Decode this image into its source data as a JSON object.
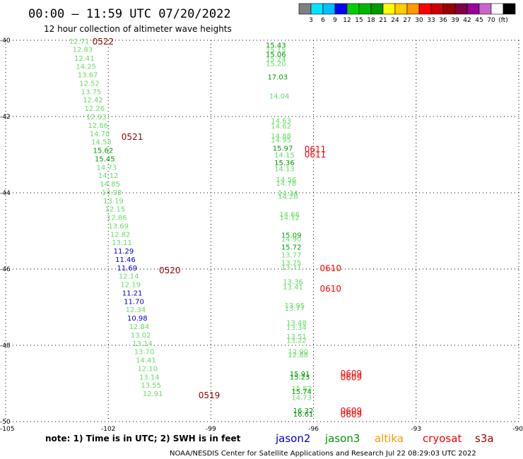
{
  "title": "00:00 – 11:59 UTC 07/20/2022",
  "subtitle": "12 hour collection of altimeter wave heights",
  "note": "note:  1) Time is in UTC;  2) SWH is in feet",
  "credit": "NOAA/NESDIS Center for Satellite Applications and Research     Jul 22 08:29:03 UTC 2022",
  "colorbar": {
    "colors": [
      "#7f7f7f",
      "#00e5ff",
      "#00bfff",
      "#0000ff",
      "#00d000",
      "#00b800",
      "#009900",
      "#ffff00",
      "#ffcc00",
      "#ff9900",
      "#ff0000",
      "#cc0000",
      "#990000",
      "#800040",
      "#990099",
      "#cc66cc",
      "#ffffff",
      "#000000"
    ],
    "labels": [
      "3",
      "6",
      "9",
      "12",
      "15",
      "18",
      "21",
      "24",
      "27",
      "30",
      "33",
      "36",
      "39",
      "42",
      "45",
      "70",
      "(ft)"
    ]
  },
  "legend": [
    {
      "name": "jason2",
      "color": "#0000cc"
    },
    {
      "name": "jason3",
      "color": "#009900"
    },
    {
      "name": "altika",
      "color": "#ff9900"
    },
    {
      "name": "cryosat",
      "color": "#ff0000"
    },
    {
      "name": "s3a",
      "color": "#990000"
    }
  ],
  "chart_data": {
    "type": "scatter",
    "xlim": [
      -105,
      -90
    ],
    "ylim": [
      -50,
      -40
    ],
    "xticks": [
      -105,
      -102,
      -99,
      -96,
      -93,
      -90
    ],
    "yticks": [
      -40,
      -42,
      -44,
      -46,
      -48,
      -50
    ],
    "grid": true,
    "points": [
      {
        "x": -102.85,
        "y": -40.02,
        "v": "12.71",
        "c": "#66dd66"
      },
      {
        "x": -102.75,
        "y": -40.23,
        "v": "12.83",
        "c": "#66dd66"
      },
      {
        "x": -102.7,
        "y": -40.46,
        "v": "12.41",
        "c": "#66dd66"
      },
      {
        "x": -102.65,
        "y": -40.68,
        "v": "14.25",
        "c": "#66dd66"
      },
      {
        "x": -102.6,
        "y": -40.9,
        "v": "13.67",
        "c": "#66dd66"
      },
      {
        "x": -102.55,
        "y": -41.12,
        "v": "12.52",
        "c": "#66dd66"
      },
      {
        "x": -102.5,
        "y": -41.34,
        "v": "13.75",
        "c": "#66dd66"
      },
      {
        "x": -102.45,
        "y": -41.56,
        "v": "12.42",
        "c": "#66dd66"
      },
      {
        "x": -102.4,
        "y": -41.78,
        "v": "12.26",
        "c": "#66dd66"
      },
      {
        "x": -102.35,
        "y": -42.0,
        "v": "12.93",
        "c": "#66dd66"
      },
      {
        "x": -102.3,
        "y": -42.22,
        "v": "12.86",
        "c": "#66dd66"
      },
      {
        "x": -102.25,
        "y": -42.44,
        "v": "14.70",
        "c": "#66dd66"
      },
      {
        "x": -102.2,
        "y": -42.66,
        "v": "14.53",
        "c": "#66dd66"
      },
      {
        "x": -102.15,
        "y": -42.88,
        "v": "15.62",
        "c": "#009900"
      },
      {
        "x": -102.1,
        "y": -43.1,
        "v": "15.45",
        "c": "#009900"
      },
      {
        "x": -102.05,
        "y": -43.32,
        "v": "14.73",
        "c": "#66dd66"
      },
      {
        "x": -102.0,
        "y": -43.54,
        "v": "14.12",
        "c": "#66dd66"
      },
      {
        "x": -101.95,
        "y": -43.76,
        "v": "14.85",
        "c": "#66dd66"
      },
      {
        "x": -101.9,
        "y": -43.98,
        "v": "14.98",
        "c": "#66dd66"
      },
      {
        "x": -101.85,
        "y": -44.2,
        "v": "13.19",
        "c": "#66dd66"
      },
      {
        "x": -101.8,
        "y": -44.42,
        "v": "12.15",
        "c": "#66dd66"
      },
      {
        "x": -101.75,
        "y": -44.64,
        "v": "12.86",
        "c": "#66dd66"
      },
      {
        "x": -101.7,
        "y": -44.86,
        "v": "13.69",
        "c": "#66dd66"
      },
      {
        "x": -101.65,
        "y": -45.08,
        "v": "12.82",
        "c": "#66dd66"
      },
      {
        "x": -101.6,
        "y": -45.3,
        "v": "13.11",
        "c": "#66dd66"
      },
      {
        "x": -101.55,
        "y": -45.52,
        "v": "11.29",
        "c": "#0000cc"
      },
      {
        "x": -101.5,
        "y": -45.74,
        "v": "11.46",
        "c": "#0000cc"
      },
      {
        "x": -101.45,
        "y": -45.96,
        "v": "11.69",
        "c": "#0000cc"
      },
      {
        "x": -101.4,
        "y": -46.18,
        "v": "12.14",
        "c": "#66dd66"
      },
      {
        "x": -101.35,
        "y": -46.4,
        "v": "12.19",
        "c": "#66dd66"
      },
      {
        "x": -101.3,
        "y": -46.62,
        "v": "11.21",
        "c": "#0000cc"
      },
      {
        "x": -101.25,
        "y": -46.84,
        "v": "11.70",
        "c": "#0000cc"
      },
      {
        "x": -101.2,
        "y": -47.06,
        "v": "12.34",
        "c": "#66dd66"
      },
      {
        "x": -101.15,
        "y": -47.28,
        "v": "10.98",
        "c": "#0000cc"
      },
      {
        "x": -101.1,
        "y": -47.5,
        "v": "12.84",
        "c": "#66dd66"
      },
      {
        "x": -101.05,
        "y": -47.72,
        "v": "13.02",
        "c": "#66dd66"
      },
      {
        "x": -101.0,
        "y": -47.94,
        "v": "13.14",
        "c": "#66dd66"
      },
      {
        "x": -100.95,
        "y": -48.16,
        "v": "13.70",
        "c": "#66dd66"
      },
      {
        "x": -100.9,
        "y": -48.38,
        "v": "14.41",
        "c": "#66dd66"
      },
      {
        "x": -100.85,
        "y": -48.6,
        "v": "12.10",
        "c": "#66dd66"
      },
      {
        "x": -100.8,
        "y": -48.82,
        "v": "13.14",
        "c": "#66dd66"
      },
      {
        "x": -100.75,
        "y": -49.04,
        "v": "13.55",
        "c": "#66dd66"
      },
      {
        "x": -100.7,
        "y": -49.26,
        "v": "12.91",
        "c": "#66dd66"
      },
      {
        "x": -97.1,
        "y": -40.12,
        "v": "15.43",
        "c": "#009900"
      },
      {
        "x": -97.1,
        "y": -40.24,
        "v": "15.15",
        "c": "#66dd66"
      },
      {
        "x": -97.1,
        "y": -40.36,
        "v": "15.06",
        "c": "#009900"
      },
      {
        "x": -97.1,
        "y": -40.48,
        "v": "15.24",
        "c": "#66dd66"
      },
      {
        "x": -97.1,
        "y": -40.6,
        "v": "15.20",
        "c": "#66dd66"
      },
      {
        "x": -97.05,
        "y": -40.95,
        "v": "17.03",
        "c": "#009900"
      },
      {
        "x": -97.0,
        "y": -41.45,
        "v": "14.04",
        "c": "#66dd66"
      },
      {
        "x": -96.95,
        "y": -42.1,
        "v": "14.63",
        "c": "#66dd66"
      },
      {
        "x": -96.95,
        "y": -42.24,
        "v": "14.62",
        "c": "#66dd66"
      },
      {
        "x": -96.95,
        "y": -42.5,
        "v": "14.88",
        "c": "#66dd66"
      },
      {
        "x": -96.95,
        "y": -42.6,
        "v": "14.95",
        "c": "#66dd66"
      },
      {
        "x": -96.9,
        "y": -42.82,
        "v": "15.97",
        "c": "#009900"
      },
      {
        "x": -96.85,
        "y": -43.0,
        "v": "14.15",
        "c": "#66dd66"
      },
      {
        "x": -96.85,
        "y": -43.2,
        "v": "15.36",
        "c": "#009900"
      },
      {
        "x": -96.85,
        "y": -43.36,
        "v": "14.13",
        "c": "#66dd66"
      },
      {
        "x": -96.8,
        "y": -43.65,
        "v": "14.56",
        "c": "#66dd66"
      },
      {
        "x": -96.8,
        "y": -43.74,
        "v": "14.78",
        "c": "#66dd66"
      },
      {
        "x": -96.75,
        "y": -44.0,
        "v": "14.34",
        "c": "#66dd66"
      },
      {
        "x": -96.75,
        "y": -44.08,
        "v": "14.28",
        "c": "#66dd66"
      },
      {
        "x": -96.7,
        "y": -44.56,
        "v": "14.66",
        "c": "#66dd66"
      },
      {
        "x": -96.7,
        "y": -44.64,
        "v": "14.12",
        "c": "#66dd66"
      },
      {
        "x": -96.65,
        "y": -45.1,
        "v": "15.09",
        "c": "#009900"
      },
      {
        "x": -96.65,
        "y": -45.2,
        "v": "14.90",
        "c": "#66dd66"
      },
      {
        "x": -96.65,
        "y": -45.42,
        "v": "15.72",
        "c": "#009900"
      },
      {
        "x": -96.65,
        "y": -45.62,
        "v": "13.77",
        "c": "#66dd66"
      },
      {
        "x": -96.65,
        "y": -45.82,
        "v": "13.75",
        "c": "#66dd66"
      },
      {
        "x": -96.65,
        "y": -45.94,
        "v": "13.71",
        "c": "#66dd66"
      },
      {
        "x": -96.6,
        "y": -46.32,
        "v": "13.36",
        "c": "#66dd66"
      },
      {
        "x": -96.6,
        "y": -46.46,
        "v": "13.41",
        "c": "#66dd66"
      },
      {
        "x": -96.55,
        "y": -46.94,
        "v": "13.95",
        "c": "#66dd66"
      },
      {
        "x": -96.55,
        "y": -47.02,
        "v": "13.77",
        "c": "#66dd66"
      },
      {
        "x": -96.5,
        "y": -47.4,
        "v": "13.48",
        "c": "#66dd66"
      },
      {
        "x": -96.5,
        "y": -47.52,
        "v": "13.34",
        "c": "#66dd66"
      },
      {
        "x": -96.5,
        "y": -47.76,
        "v": "13.51",
        "c": "#66dd66"
      },
      {
        "x": -96.5,
        "y": -47.86,
        "v": "13.22",
        "c": "#66dd66"
      },
      {
        "x": -96.45,
        "y": -48.16,
        "v": "12.90",
        "c": "#66dd66"
      },
      {
        "x": -96.45,
        "y": -48.24,
        "v": "12.88",
        "c": "#66dd66"
      },
      {
        "x": -96.4,
        "y": -48.74,
        "v": "15.91",
        "c": "#009900"
      },
      {
        "x": -96.4,
        "y": -48.82,
        "v": "15.23",
        "c": "#009900"
      },
      {
        "x": -96.35,
        "y": -49.12,
        "v": "15.82",
        "c": "#66dd66"
      },
      {
        "x": -96.35,
        "y": -49.2,
        "v": "15.74",
        "c": "#009900"
      },
      {
        "x": -96.35,
        "y": -49.36,
        "v": "14.73",
        "c": "#66dd66"
      },
      {
        "x": -96.3,
        "y": -49.7,
        "v": "16.32",
        "c": "#009900"
      },
      {
        "x": -96.3,
        "y": -49.8,
        "v": "16.61",
        "c": "#009900"
      }
    ],
    "pass_labels": [
      {
        "x": -102.15,
        "y": -40.02,
        "v": "0522",
        "c": "#990000"
      },
      {
        "x": -101.3,
        "y": -42.52,
        "v": "0521",
        "c": "#990000"
      },
      {
        "x": -100.2,
        "y": -46.02,
        "v": "0520",
        "c": "#990000"
      },
      {
        "x": -99.05,
        "y": -49.3,
        "v": "0519",
        "c": "#990000"
      },
      {
        "x": -95.95,
        "y": -42.84,
        "v": "0611",
        "c": "#ff0000"
      },
      {
        "x": -95.95,
        "y": -42.98,
        "v": "0611",
        "c": "#ff0000"
      },
      {
        "x": -95.5,
        "y": -45.96,
        "v": "0610",
        "c": "#ff0000"
      },
      {
        "x": -95.5,
        "y": -46.5,
        "v": "0610",
        "c": "#ff0000"
      },
      {
        "x": -94.9,
        "y": -48.72,
        "v": "0609",
        "c": "#ff0000"
      },
      {
        "x": -94.9,
        "y": -48.82,
        "v": "0609",
        "c": "#ff0000"
      },
      {
        "x": -94.9,
        "y": -49.7,
        "v": "0609",
        "c": "#ff0000"
      },
      {
        "x": -94.9,
        "y": -49.8,
        "v": "0609",
        "c": "#ff0000"
      }
    ]
  }
}
